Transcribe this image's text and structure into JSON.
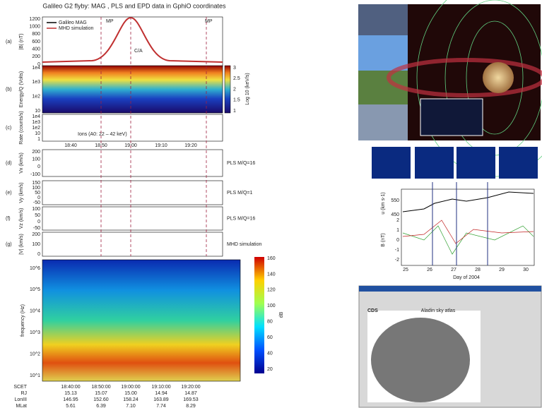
{
  "left_figure": {
    "title": "Galileo G2 flyby: MAG , PLS and EPD data in GphiO coordinates",
    "panel_letters": [
      "(a)",
      "(b)",
      "(c)",
      "(d)",
      "(e)",
      "(f)",
      "(g)"
    ],
    "panel_a": {
      "ylabel": "|B| (nT)",
      "yticks": [
        "1200",
        "1000",
        "800",
        "600",
        "400",
        "200",
        "0"
      ],
      "legend": [
        "Galileo MAG",
        "MHD simulation"
      ],
      "annotations": [
        "MP",
        "MP",
        "C/A"
      ]
    },
    "panel_b": {
      "ylabel": "Energy/Q (Volts)",
      "yticks": [
        "1e4",
        "1e3",
        "1e2",
        "10"
      ],
      "colorbar_ticks": [
        "3",
        "2.5",
        "2",
        "1.5",
        "1"
      ],
      "colorbar_label": "Log 10 (keV/s)"
    },
    "panel_c": {
      "ylabel": "Rate (counts/s)",
      "yticks": [
        "1e4",
        "1e3",
        "1e2",
        "10",
        "1"
      ],
      "annotation": "Ions (A0: 22 – 42 keV)"
    },
    "time_ticks": [
      "18:40",
      "18:50",
      "19:00",
      "19:10",
      "19:20"
    ],
    "panel_d": {
      "ylabel": "Vx (km/s)",
      "yticks": [
        "200",
        "100",
        "0",
        "-100"
      ],
      "legend": "PLS M/Q=16"
    },
    "panel_e": {
      "ylabel": "Vy (km/s)",
      "yticks": [
        "150",
        "100",
        "50",
        "0",
        "-50"
      ],
      "legend": "PLS M/Q=1"
    },
    "panel_f": {
      "ylabel": "Vz (km/s)",
      "yticks": [
        "100",
        "50",
        "0",
        "-50"
      ],
      "legend": "PLS M/Q=16"
    },
    "panel_g": {
      "ylabel": "|V| (km/s)",
      "yticks": [
        "200",
        "100",
        "0"
      ],
      "legend": "MHD simulation"
    },
    "spectrogram": {
      "ylabel": "frequency (Hz)",
      "yticks": [
        "10^6",
        "10^5",
        "10^4",
        "10^3",
        "10^2",
        "10^1"
      ],
      "colorbar_ticks": [
        "160",
        "140",
        "120",
        "100",
        "80",
        "60",
        "40",
        "20"
      ],
      "colorbar_label": "dB"
    },
    "table": {
      "rows": [
        [
          "SCET",
          "18:40:00",
          "18:50:00",
          "19:00:00",
          "19:10:00",
          "19:20:00"
        ],
        [
          "RJ",
          "15.13",
          "15.07",
          "15.00",
          "14.94",
          "14.87"
        ],
        [
          "LonIII",
          "146.95",
          "152.60",
          "158.24",
          "163.89",
          "169.53"
        ],
        [
          "MLat",
          "5.61",
          "6.39",
          "7.10",
          "7.74",
          "8.29"
        ]
      ]
    }
  },
  "right_figure": {
    "plot": {
      "ylabel_top": "u (km s-1)",
      "yticks_top": [
        "550",
        "450"
      ],
      "ylabel_bottom": "B (nT)",
      "yticks_bottom": [
        "2",
        "1",
        "0",
        "-1",
        "-2"
      ],
      "xticks": [
        "25",
        "26",
        "27",
        "28",
        "29",
        "30"
      ],
      "xlabel": "Day of 2004"
    },
    "screenshot": {
      "window_title": "Aladin sky atlas",
      "logo": "CDS"
    }
  }
}
